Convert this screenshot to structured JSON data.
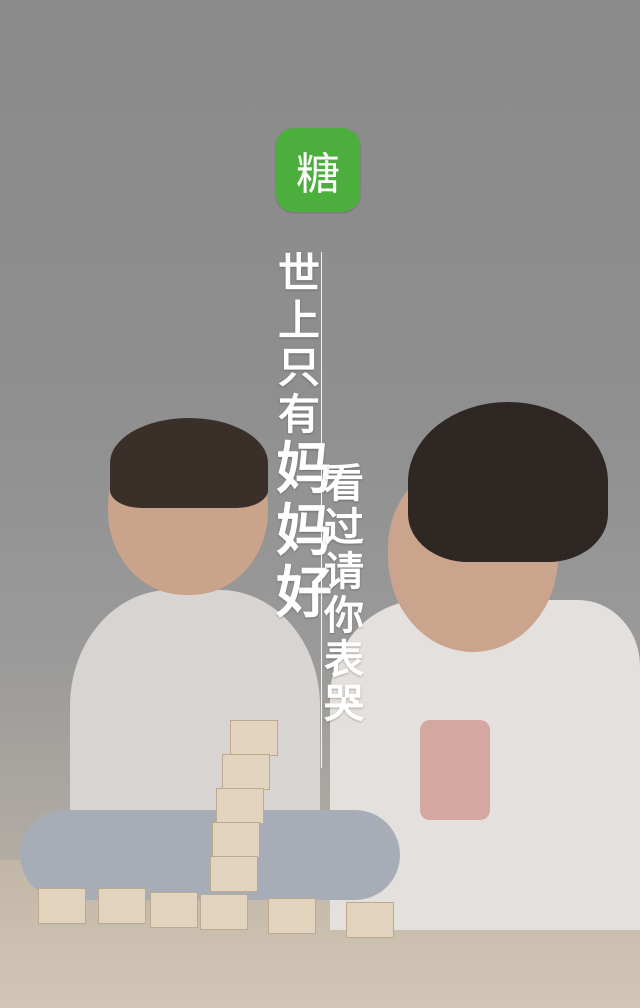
{
  "logo": {
    "text": "糖"
  },
  "slogan": {
    "left_small": [
      "世",
      "上",
      "只",
      "有"
    ],
    "left_big": [
      "妈",
      "妈",
      "好"
    ],
    "right": [
      "看",
      "过",
      "请",
      "你",
      "表",
      "哭"
    ]
  },
  "colors": {
    "logo_bg": "#4caf3d",
    "text": "#ffffff",
    "overlay": "#8f8f8f"
  }
}
